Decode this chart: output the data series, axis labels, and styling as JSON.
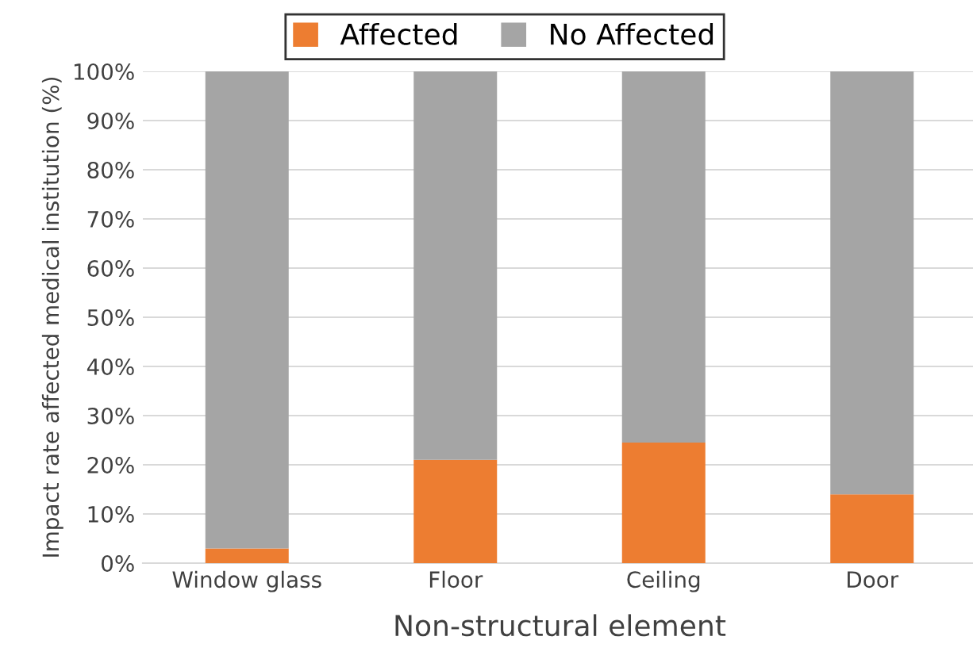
{
  "chart_data": {
    "type": "bar",
    "stacked": true,
    "xlabel": "Non-structural element",
    "ylabel": "Impact rate affected medical institution (%)",
    "categories": [
      "Window glass",
      "Floor",
      "Ceiling",
      "Door"
    ],
    "series": [
      {
        "name": "Affected",
        "color": "#ed7d31",
        "values": [
          3,
          21,
          24.5,
          14
        ]
      },
      {
        "name": "No Affected",
        "color": "#a5a5a5",
        "values": [
          97,
          79,
          75.5,
          86
        ]
      }
    ],
    "ylim": [
      0,
      100
    ],
    "yticks": [
      {
        "value": 0,
        "label": "0%"
      },
      {
        "value": 10,
        "label": "10%"
      },
      {
        "value": 20,
        "label": "20%"
      },
      {
        "value": 30,
        "label": "30%"
      },
      {
        "value": 40,
        "label": "40%"
      },
      {
        "value": 50,
        "label": "50%"
      },
      {
        "value": 60,
        "label": "60%"
      },
      {
        "value": 70,
        "label": "70%"
      },
      {
        "value": 80,
        "label": "80%"
      },
      {
        "value": 90,
        "label": "90%"
      },
      {
        "value": 100,
        "label": "100%"
      }
    ],
    "grid": "y",
    "legend": "top"
  }
}
